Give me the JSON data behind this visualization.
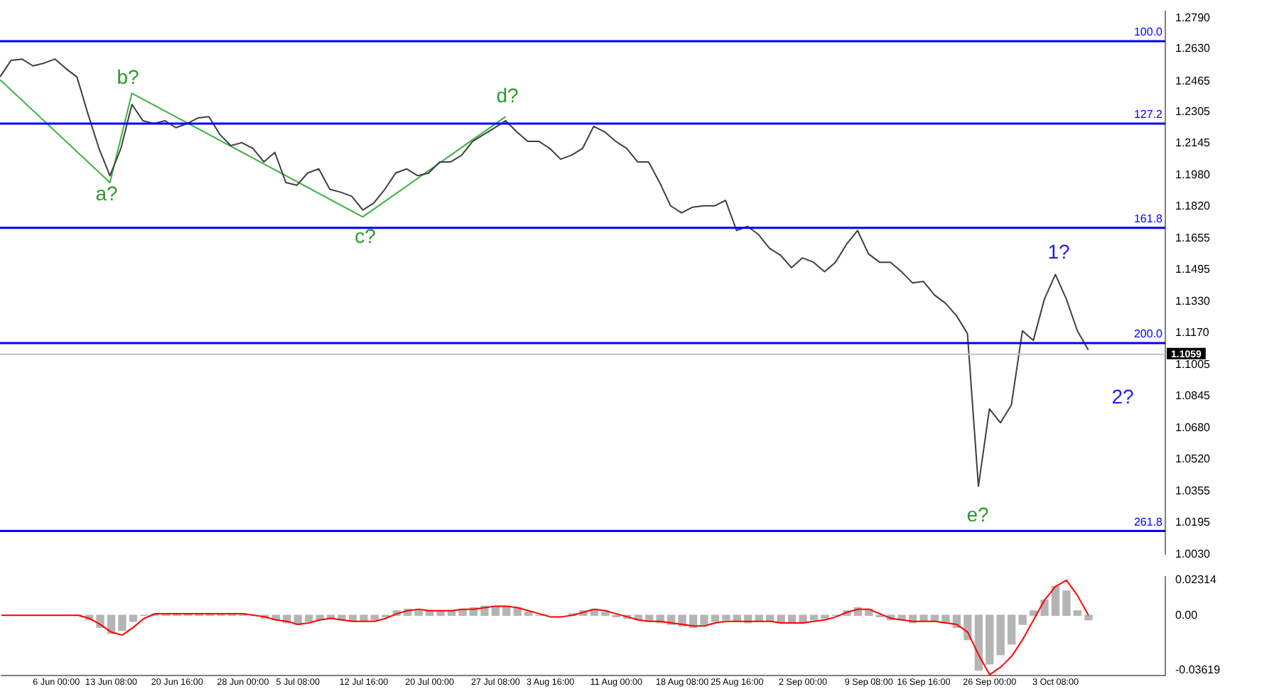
{
  "chart_data": [
    {
      "type": "line",
      "tick_labels": "y",
      "grid": false,
      "legend": false,
      "marker": "none",
      "ylim": [
        1.003,
        1.2825
      ],
      "yticks": [
        {
          "value": 1.279,
          "label": "1.2790"
        },
        {
          "value": 1.263,
          "label": "1.2630"
        },
        {
          "value": 1.2465,
          "label": "1.2465"
        },
        {
          "value": 1.2305,
          "label": "1.2305"
        },
        {
          "value": 1.2145,
          "label": "1.2145"
        },
        {
          "value": 1.198,
          "label": "1.1980"
        },
        {
          "value": 1.182,
          "label": "1.1820"
        },
        {
          "value": 1.1655,
          "label": "1.1655"
        },
        {
          "value": 1.1495,
          "label": "1.1495"
        },
        {
          "value": 1.133,
          "label": "1.1330"
        },
        {
          "value": 1.117,
          "label": "1.1170"
        },
        {
          "value": 1.1005,
          "label": "1.1005"
        },
        {
          "value": 1.0845,
          "label": "1.0845"
        },
        {
          "value": 1.068,
          "label": "1.0680"
        },
        {
          "value": 1.052,
          "label": "1.0520"
        },
        {
          "value": 1.0355,
          "label": "1.0355"
        },
        {
          "value": 1.0195,
          "label": "1.0195"
        },
        {
          "value": 1.003,
          "label": "1.0030"
        }
      ],
      "series": [
        {
          "color": "#404040",
          "values": [
            1.2486,
            1.2571,
            1.2578,
            1.2543,
            1.2557,
            1.2578,
            1.2529,
            1.2486,
            1.2296,
            1.2119,
            1.1978,
            1.2119,
            1.2345,
            1.2261,
            1.2246,
            1.2261,
            1.2225,
            1.2246,
            1.2275,
            1.2282,
            1.219,
            1.2133,
            1.2148,
            1.2119,
            1.2049,
            1.2098,
            1.1943,
            1.1929,
            1.1992,
            1.2013,
            1.1908,
            1.1893,
            1.1872,
            1.1802,
            1.1837,
            1.1908,
            1.1992,
            1.2013,
            1.1978,
            1.1992,
            1.2049,
            1.2049,
            1.2084,
            1.2155,
            1.219,
            1.2225,
            1.2261,
            1.2204,
            1.2155,
            1.2155,
            1.2119,
            1.2063,
            1.2084,
            1.2119,
            1.2232,
            1.2204,
            1.2155,
            1.2119,
            1.2049,
            1.2049,
            1.1943,
            1.1823,
            1.1787,
            1.1816,
            1.1823,
            1.1823,
            1.1851,
            1.1696,
            1.1717,
            1.1675,
            1.1604,
            1.1569,
            1.1505,
            1.1555,
            1.1533,
            1.1484,
            1.1533,
            1.1625,
            1.1696,
            1.1576,
            1.1533,
            1.1533,
            1.1484,
            1.1427,
            1.1434,
            1.1364,
            1.1322,
            1.1258,
            1.1166,
            1.038,
            1.0778,
            1.0707,
            1.0799,
            1.118,
            1.1131,
            1.1343,
            1.147,
            1.1343,
            1.118,
            1.1081,
            null,
            null,
            null,
            null,
            null,
            null,
            null
          ]
        },
        {
          "color": "#3cb043",
          "values": [
            1.2472,
            null,
            null,
            null,
            null,
            null,
            null,
            null,
            null,
            null,
            1.1943,
            null,
            1.2402,
            null,
            null,
            null,
            null,
            null,
            null,
            null,
            null,
            null,
            null,
            null,
            null,
            null,
            null,
            null,
            null,
            null,
            null,
            null,
            null,
            1.1766,
            null,
            null,
            null,
            null,
            null,
            null,
            null,
            null,
            null,
            null,
            null,
            null,
            1.2282,
            null,
            null,
            null,
            null,
            null,
            null,
            null,
            null,
            null,
            null,
            null,
            null,
            null,
            null,
            null,
            null,
            null,
            null,
            null,
            null,
            null,
            null,
            null,
            null,
            null,
            null,
            null,
            null,
            null,
            null,
            null,
            null,
            null,
            null,
            null,
            null,
            null,
            null,
            null,
            null,
            null,
            null,
            null,
            null,
            null,
            null,
            null,
            null,
            null,
            null,
            null,
            null,
            null,
            null,
            null,
            null,
            null,
            null,
            null,
            null
          ]
        }
      ],
      "ref_lines": [
        {
          "axis": "y",
          "value": 1.267,
          "color": "#0000ff"
        },
        {
          "axis": "y",
          "value": 1.2246,
          "color": "#0000ff"
        },
        {
          "axis": "y",
          "value": 1.171,
          "color": "#0000ff"
        },
        {
          "axis": "y",
          "value": 1.1117,
          "color": "#0000ff"
        },
        {
          "axis": "y",
          "value": 1.015,
          "color": "#0000ff"
        },
        {
          "axis": "y",
          "value": 1.1059,
          "label": "1.1059",
          "color": "#c0c0c0"
        }
      ],
      "annotations": [
        "a?",
        "b?",
        "c?",
        "d?",
        "e?",
        "1?",
        "2?",
        {
          "text": "100.0",
          "y": 1.267
        },
        {
          "text": "127.2",
          "y": 1.2246
        },
        {
          "text": "161.8",
          "y": 1.171
        },
        {
          "text": "200.0",
          "y": 1.1117
        },
        {
          "text": "261.8",
          "y": 1.015
        }
      ]
    },
    {
      "type": "bar",
      "grid": false,
      "legend": false,
      "categories": [
        null,
        null,
        null,
        null,
        null,
        "6 Jun 00:00",
        null,
        null,
        null,
        null,
        "13 Jun 08:00",
        null,
        null,
        null,
        null,
        null,
        "20 Jun 16:00",
        null,
        null,
        null,
        null,
        null,
        "28 Jun 00:00",
        null,
        null,
        null,
        null,
        "5 Jul 08:00",
        null,
        null,
        null,
        null,
        null,
        "12 Jul 16:00",
        null,
        null,
        null,
        null,
        null,
        "20 Jul 00:00",
        null,
        null,
        null,
        null,
        null,
        "27 Jul 08:00",
        null,
        null,
        null,
        null,
        "3 Aug 16:00",
        null,
        null,
        null,
        null,
        null,
        "11 Aug 00:00",
        null,
        null,
        null,
        null,
        null,
        "18 Aug 08:00",
        null,
        null,
        null,
        null,
        "25 Aug 16:00",
        null,
        null,
        null,
        null,
        null,
        "2 Sep 00:00",
        null,
        null,
        null,
        null,
        null,
        "9 Sep 08:00",
        null,
        null,
        null,
        null,
        "16 Sep 16:00",
        null,
        null,
        null,
        null,
        null,
        "26 Sep 00:00",
        null,
        null,
        null,
        null,
        null,
        "3 Oct 08:00",
        null,
        null,
        null,
        null,
        null,
        null,
        null,
        null,
        null,
        null
      ],
      "ylim": [
        -0.0395,
        0.0255
      ],
      "yticks": [
        0.02314,
        {
          "value": 0,
          "label": "0.00"
        },
        -0.03619
      ],
      "series": [
        {
          "color": "#b4b4b4",
          "values": [
            0,
            0,
            0,
            0,
            0,
            0,
            0,
            0,
            -0.003,
            -0.008,
            -0.012,
            -0.01,
            -0.004,
            0,
            0.001,
            0.001,
            0.001,
            0.001,
            0.001,
            0.001,
            0.001,
            0.001,
            0.001,
            null,
            -0.002,
            -0.003,
            -0.005,
            -0.006,
            -0.004,
            -0.003,
            -0.002,
            -0.003,
            -0.004,
            -0.004,
            -0.003,
            -0.001,
            0.003,
            0.004,
            0.003,
            0.003,
            0.003,
            0.003,
            0.004,
            0.005,
            0.006,
            0.006,
            0.006,
            0.005,
            0.002,
            0,
            null,
            null,
            0.001,
            0.003,
            0.004,
            0.002,
            -0.001,
            -0.002,
            -0.003,
            -0.004,
            -0.005,
            -0.006,
            -0.007,
            -0.008,
            -0.006,
            -0.004,
            -0.003,
            -0.004,
            -0.005,
            -0.004,
            -0.004,
            -0.005,
            -0.005,
            -0.005,
            -0.003,
            -0.002,
            0,
            0.003,
            0.005,
            0.004,
            -0.001,
            -0.003,
            -0.003,
            -0.005,
            -0.004,
            -0.004,
            -0.005,
            -0.008,
            -0.016,
            -0.036,
            -0.032,
            -0.026,
            -0.019,
            -0.006,
            0.003,
            0.01,
            0.019,
            0.016,
            0.003,
            -0.003,
            null,
            null,
            null,
            null,
            null,
            null,
            null
          ]
        },
        {
          "type": "line",
          "color": "#ff0000",
          "values": [
            0,
            0,
            0,
            0,
            0,
            0,
            0,
            0,
            -0.002,
            -0.006,
            -0.011,
            -0.013,
            -0.008,
            -0.002,
            0.001,
            0.001,
            0.001,
            0.001,
            0.001,
            0.001,
            0.001,
            0.001,
            0.001,
            0,
            -0.001,
            -0.003,
            -0.004,
            -0.006,
            -0.005,
            -0.003,
            -0.002,
            -0.003,
            -0.004,
            -0.004,
            -0.004,
            -0.002,
            0.001,
            0.003,
            0.004,
            0.003,
            0.003,
            0.003,
            0.004,
            0.004,
            0.005,
            0.006,
            0.006,
            0.005,
            0.003,
            0.001,
            -0.001,
            -0.001,
            0,
            0.002,
            0.004,
            0.003,
            0.001,
            -0.001,
            -0.003,
            -0.004,
            -0.004,
            -0.005,
            -0.006,
            -0.007,
            -0.007,
            -0.005,
            -0.004,
            -0.004,
            -0.004,
            -0.004,
            -0.004,
            -0.005,
            -0.005,
            -0.005,
            -0.004,
            -0.003,
            -0.001,
            0.002,
            0.004,
            0.004,
            0.001,
            -0.002,
            -0.003,
            -0.004,
            -0.004,
            -0.004,
            -0.005,
            -0.006,
            -0.011,
            -0.026,
            -0.039,
            -0.034,
            -0.027,
            -0.016,
            -0.003,
            0.01,
            0.019,
            0.023,
            0.013,
            0,
            null,
            null,
            null,
            null,
            null,
            null,
            null
          ]
        }
      ]
    }
  ]
}
